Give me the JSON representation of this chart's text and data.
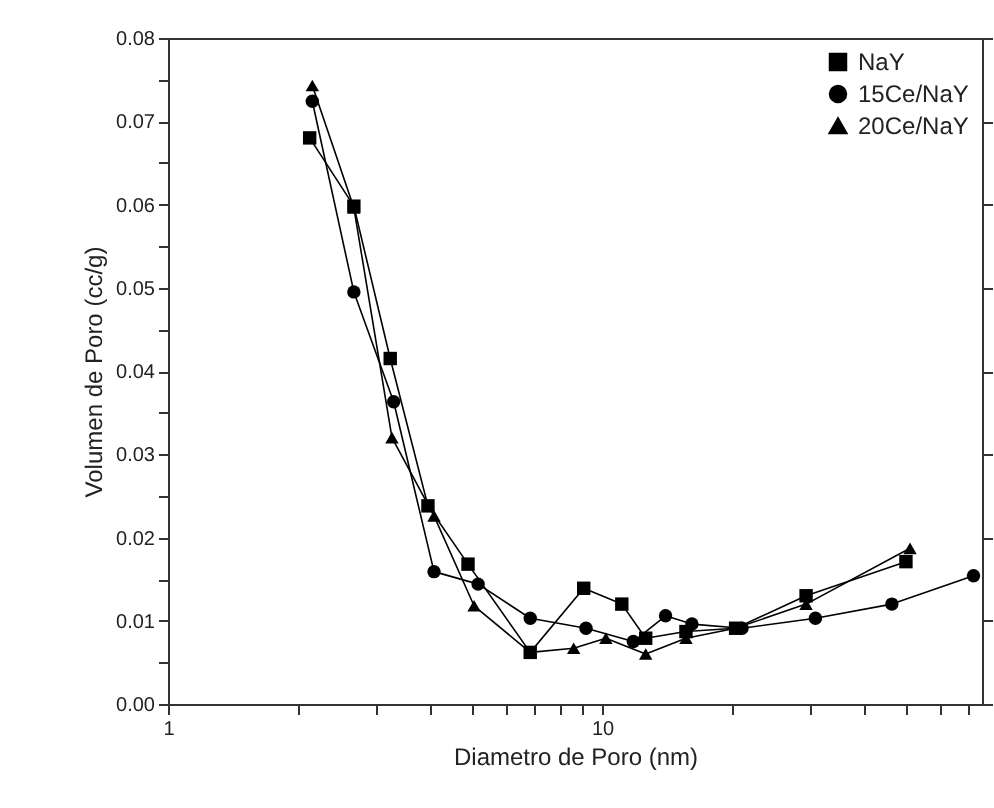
{
  "chart_data": {
    "type": "line",
    "xlabel": "Diametro de Poro (nm)",
    "ylabel": "Volumen de Poro (cc/g)",
    "log": "x",
    "xlim": [
      1,
      75
    ],
    "xticks": [
      1,
      {
        "value": 2,
        "label": null
      },
      {
        "value": 3,
        "label": null
      },
      {
        "value": 4,
        "label": null
      },
      {
        "value": 5,
        "label": null
      },
      {
        "value": 6,
        "label": null
      },
      {
        "value": 7,
        "label": null
      },
      {
        "value": 8,
        "label": null
      },
      {
        "value": 9,
        "label": null
      },
      10,
      {
        "value": 20,
        "label": null
      },
      {
        "value": 30,
        "label": null
      },
      {
        "value": 40,
        "label": null
      },
      {
        "value": 50,
        "label": null
      },
      {
        "value": 60,
        "label": null
      },
      {
        "value": 70,
        "label": null
      }
    ],
    "ylim": [
      0,
      0.08
    ],
    "yticks": [
      {
        "value": 0,
        "label": "0.00"
      },
      {
        "value": 0.005,
        "label": null
      },
      {
        "value": 0.01,
        "label": "0.01"
      },
      {
        "value": 0.015,
        "label": null
      },
      {
        "value": 0.02,
        "label": "0.02"
      },
      {
        "value": 0.025,
        "label": null
      },
      {
        "value": 0.03,
        "label": "0.03"
      },
      {
        "value": 0.035,
        "label": null
      },
      {
        "value": 0.04,
        "label": "0.04"
      },
      {
        "value": 0.045,
        "label": null
      },
      {
        "value": 0.05,
        "label": "0.05"
      },
      {
        "value": 0.055,
        "label": null
      },
      {
        "value": 0.06,
        "label": "0.06"
      },
      {
        "value": 0.065,
        "label": null
      },
      {
        "value": 0.07,
        "label": "0.07"
      },
      {
        "value": 0.075,
        "label": null
      },
      {
        "value": 0.08,
        "label": "0.08"
      }
    ],
    "legend": "top right",
    "grid": false,
    "line_style": "solid",
    "series": [
      {
        "name": "NaY",
        "color": "#000000",
        "marker": "square",
        "x": [
          2.12,
          2.68,
          3.25,
          3.97,
          4.91,
          6.83,
          9.07,
          11.1,
          12.6,
          15.6,
          20.3,
          29.5,
          50.1
        ],
        "values": [
          0.068,
          0.0598,
          0.0415,
          0.0238,
          0.0168,
          0.0062,
          0.0139,
          0.012,
          0.0079,
          0.0087,
          0.0091,
          0.013,
          0.0171
        ]
      },
      {
        "name": "15Ce/NaY",
        "color": "#000000",
        "marker": "circle",
        "x": [
          2.15,
          2.68,
          3.31,
          4.1,
          5.18,
          6.83,
          9.18,
          11.8,
          14.0,
          16.1,
          21.0,
          31.0,
          46.5,
          71.7
        ],
        "values": [
          0.0724,
          0.0495,
          0.0363,
          0.0159,
          0.0144,
          0.0103,
          0.0091,
          0.0075,
          0.0106,
          0.0096,
          0.0091,
          0.0103,
          0.012,
          0.0154
        ]
      },
      {
        "name": "20Ce/NaY",
        "color": "#000000",
        "marker": "triangle",
        "x": [
          2.15,
          2.68,
          3.28,
          4.1,
          5.07,
          6.83,
          8.6,
          10.2,
          12.6,
          15.6,
          20.3,
          29.5,
          51.2
        ],
        "values": [
          0.0743,
          0.0596,
          0.032,
          0.0226,
          0.0118,
          0.0062,
          0.0067,
          0.0079,
          0.006,
          0.0079,
          0.0091,
          0.012,
          0.0187
        ]
      }
    ]
  }
}
